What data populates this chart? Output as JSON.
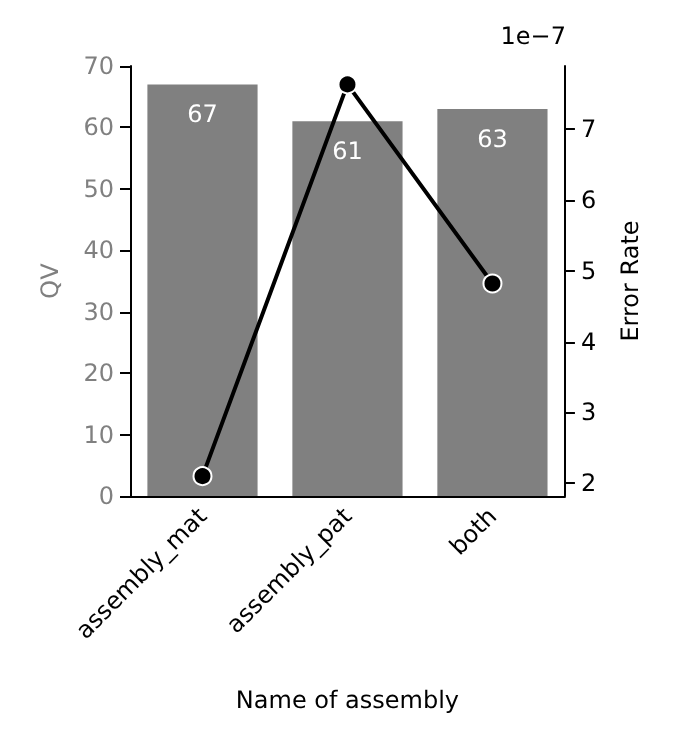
{
  "chart_data": {
    "type": "bar",
    "xlabel": "Name of assembly",
    "ylabel": "QV",
    "y2label": "Error Rate",
    "categories": [
      "assembly_mat",
      "assembly_pat",
      "both"
    ],
    "series": [
      {
        "color": "#808080",
        "values": [
          67,
          61,
          63
        ],
        "data_labels": true
      },
      {
        "type": "line",
        "axis": "y2",
        "color": "#000000",
        "marker": "circle",
        "values": [
          2.1,
          7.63,
          4.82
        ]
      }
    ],
    "ylim": [
      0,
      70
    ],
    "yticks": [
      0,
      10,
      20,
      30,
      40,
      50,
      60,
      70
    ],
    "y2lim": [
      1.82,
      7.89
    ],
    "y2ticks": [
      2,
      3,
      4,
      5,
      6,
      7
    ],
    "annotations": [
      "1e−7"
    ],
    "grid": false
  }
}
